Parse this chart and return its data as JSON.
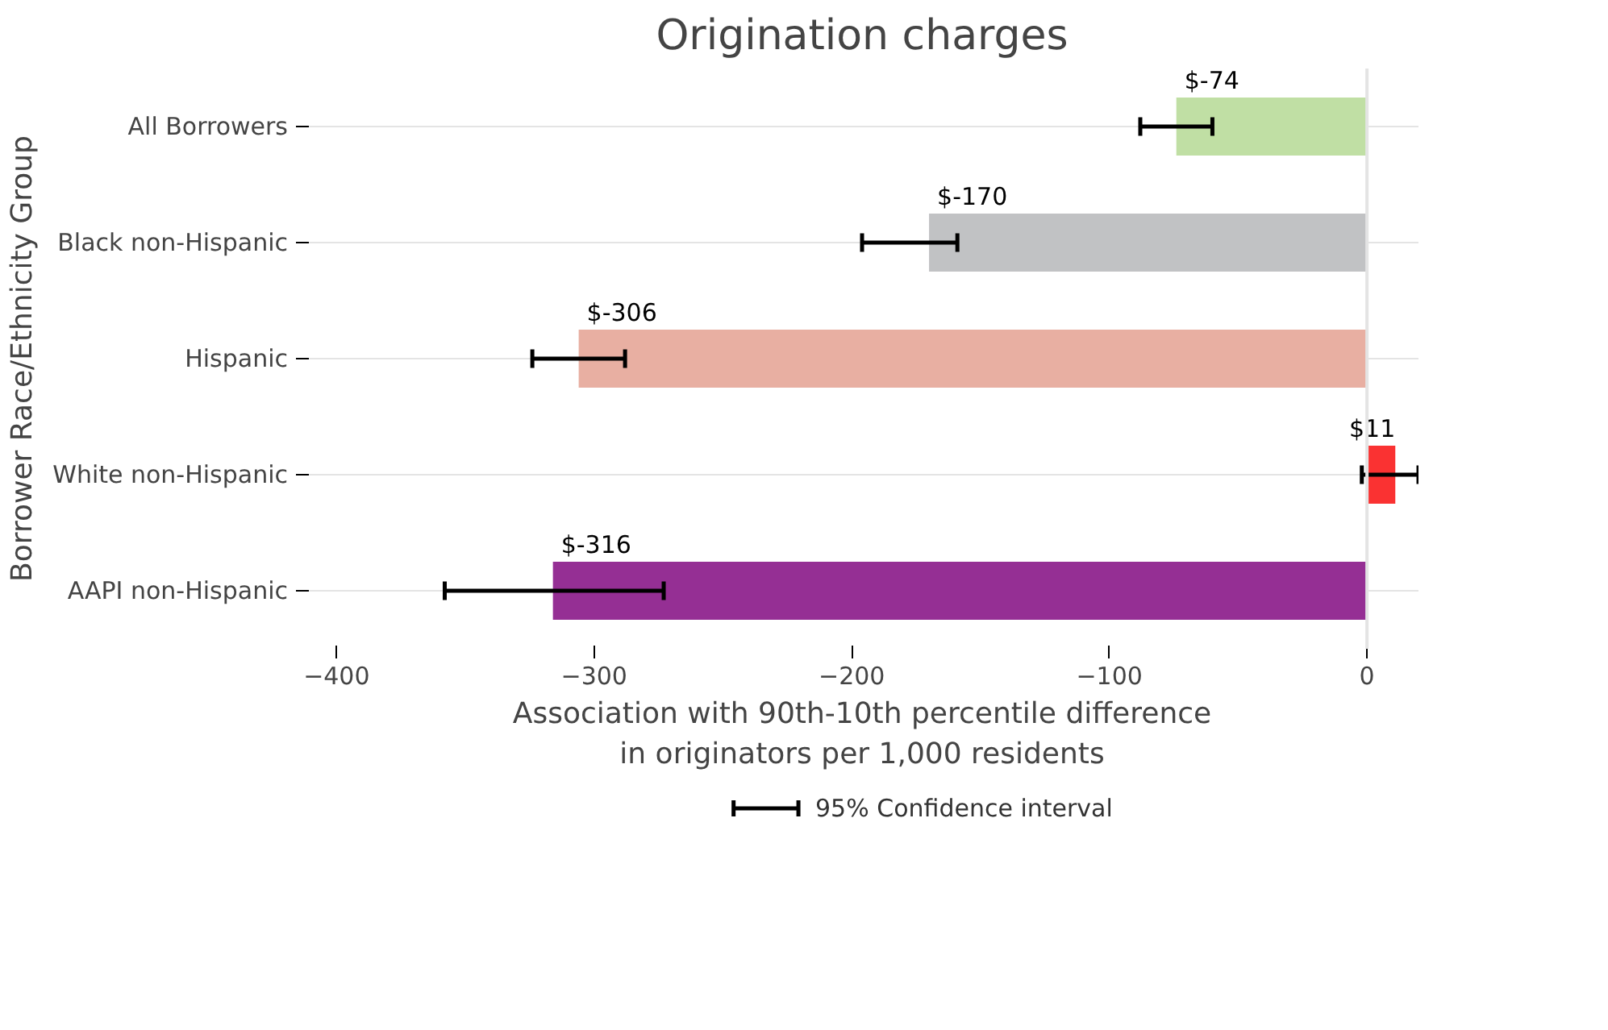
{
  "chart_data": {
    "type": "bar",
    "orientation": "horizontal",
    "title": "Origination charges",
    "xlabel": "Association with 90th-10th percentile difference\nin originators per 1,000 residents",
    "ylabel": "Borrower Race/Ethnicity Group",
    "categories": [
      "All Borrowers",
      "Black non-Hispanic",
      "Hispanic",
      "White non-Hispanic",
      "AAPI non-Hispanic"
    ],
    "values": [
      -74,
      -170,
      -306,
      11,
      -316
    ],
    "colors": [
      "#c0dfa4",
      "#c1c2c4",
      "#e8afa2",
      "#fa3232",
      "#952f94"
    ],
    "errors": [
      [
        -88,
        -60
      ],
      [
        -196,
        -159
      ],
      [
        -324,
        -288
      ],
      [
        -2,
        20
      ],
      [
        -358,
        -273
      ]
    ],
    "value_labels": [
      "$-74",
      "$-170",
      "$-306",
      "$11",
      "$-316"
    ],
    "xlim": [
      -412,
      20
    ],
    "xticks": [
      -400,
      -300,
      -200,
      -100,
      0
    ],
    "ref_lines": [
      {
        "axis": "x",
        "value": 0,
        "color": "#e4e4e4"
      }
    ],
    "grid": "y",
    "annotations": [
      "95% Confidence interval"
    ]
  }
}
